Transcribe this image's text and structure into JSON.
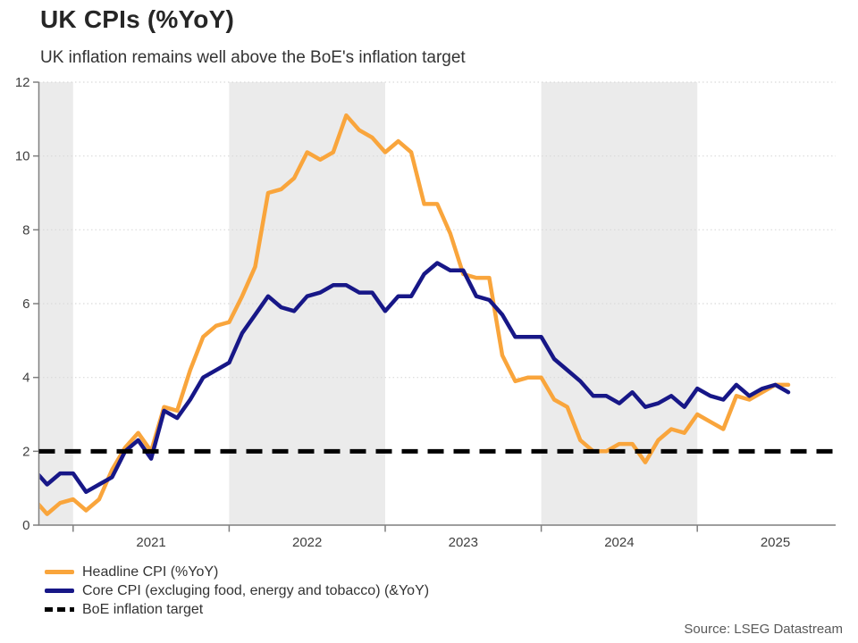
{
  "header": {
    "title": "UK CPIs (%YoY)",
    "subtitle": "UK inflation remains well above the BoE's inflation target"
  },
  "legend": {
    "items": [
      {
        "label": "Headline CPI (%YoY)",
        "swatch": "solid-line",
        "color": "#F9A53C"
      },
      {
        "label": "Core CPI (excluging food, energy and tobacco) (&YoY)",
        "swatch": "solid-line",
        "color": "#171787"
      },
      {
        "label": "BoE inflation target",
        "swatch": "dashed-line",
        "color": "#000000"
      }
    ]
  },
  "footer": {
    "source": "Source: LSEG Datastream"
  },
  "chart_data": {
    "type": "line",
    "title": "UK CPIs (%YoY)",
    "subtitle": "UK inflation remains well above the BoE's inflation target",
    "x_unit": "month",
    "months": [
      "2020-10",
      "2020-11",
      "2020-12",
      "2021-01",
      "2021-02",
      "2021-03",
      "2021-04",
      "2021-05",
      "2021-06",
      "2021-07",
      "2021-08",
      "2021-09",
      "2021-10",
      "2021-11",
      "2021-12",
      "2022-01",
      "2022-02",
      "2022-03",
      "2022-04",
      "2022-05",
      "2022-06",
      "2022-07",
      "2022-08",
      "2022-09",
      "2022-10",
      "2022-11",
      "2022-12",
      "2023-01",
      "2023-02",
      "2023-03",
      "2023-04",
      "2023-05",
      "2023-06",
      "2023-07",
      "2023-08",
      "2023-09",
      "2023-10",
      "2023-11",
      "2023-12",
      "2024-01",
      "2024-02",
      "2024-03",
      "2024-04",
      "2024-05",
      "2024-06",
      "2024-07",
      "2024-08",
      "2024-09",
      "2024-10",
      "2024-11",
      "2024-12",
      "2025-01",
      "2025-02",
      "2025-03",
      "2025-04",
      "2025-05",
      "2025-06",
      "2025-07",
      "2025-08"
    ],
    "series": [
      {
        "name": "Headline CPI (%YoY)",
        "color": "#F9A53C",
        "values": [
          0.7,
          0.3,
          0.6,
          0.7,
          0.4,
          0.7,
          1.5,
          2.1,
          2.5,
          2.0,
          3.2,
          3.1,
          4.2,
          5.1,
          5.4,
          5.5,
          6.2,
          7.0,
          9.0,
          9.1,
          9.4,
          10.1,
          9.9,
          10.1,
          11.1,
          10.7,
          10.5,
          10.1,
          10.4,
          10.1,
          8.7,
          8.7,
          7.9,
          6.8,
          6.7,
          6.7,
          4.6,
          3.9,
          4.0,
          4.0,
          3.4,
          3.2,
          2.3,
          2.0,
          2.0,
          2.2,
          2.2,
          1.7,
          2.3,
          2.6,
          2.5,
          3.0,
          2.8,
          2.6,
          3.5,
          3.4,
          3.6,
          3.8,
          3.8
        ]
      },
      {
        "name": "Core CPI (excluging food, energy and tobacco) (&YoY)",
        "color": "#171787",
        "values": [
          1.5,
          1.1,
          1.4,
          1.4,
          0.9,
          1.1,
          1.3,
          2.0,
          2.3,
          1.8,
          3.1,
          2.9,
          3.4,
          4.0,
          4.2,
          4.4,
          5.2,
          5.7,
          6.2,
          5.9,
          5.8,
          6.2,
          6.3,
          6.5,
          6.5,
          6.3,
          6.3,
          5.8,
          6.2,
          6.2,
          6.8,
          7.1,
          6.9,
          6.9,
          6.2,
          6.1,
          5.7,
          5.1,
          5.1,
          5.1,
          4.5,
          4.2,
          3.9,
          3.5,
          3.5,
          3.3,
          3.6,
          3.2,
          3.3,
          3.5,
          3.2,
          3.7,
          3.5,
          3.4,
          3.8,
          3.5,
          3.7,
          3.8,
          3.6
        ]
      }
    ],
    "target_line": {
      "label": "BoE inflation target",
      "value": 2,
      "color": "#000000",
      "style": "dashed"
    },
    "ylim": [
      0,
      12
    ],
    "y_ticks": [
      0,
      2,
      4,
      6,
      8,
      10,
      12
    ],
    "y_gridlines": [
      4,
      6,
      8,
      10,
      12
    ],
    "x_ticks": [
      {
        "month_index": 3,
        "label": "2021"
      },
      {
        "month_index": 15,
        "label": "2022"
      },
      {
        "month_index": 27,
        "label": "2023"
      },
      {
        "month_index": 39,
        "label": "2024"
      },
      {
        "month_index": 51,
        "label": "2025"
      }
    ],
    "shaded_bands_month_index": [
      [
        0,
        3
      ],
      [
        15,
        27
      ],
      [
        39,
        51
      ]
    ],
    "band_color": "#ebebeb",
    "grid_color": "#d9d9d9",
    "axis_color": "#7f7f7f",
    "tick_label_color": "#404040",
    "grid": "dotted-horizontal",
    "legend_position": "bottom-left"
  }
}
